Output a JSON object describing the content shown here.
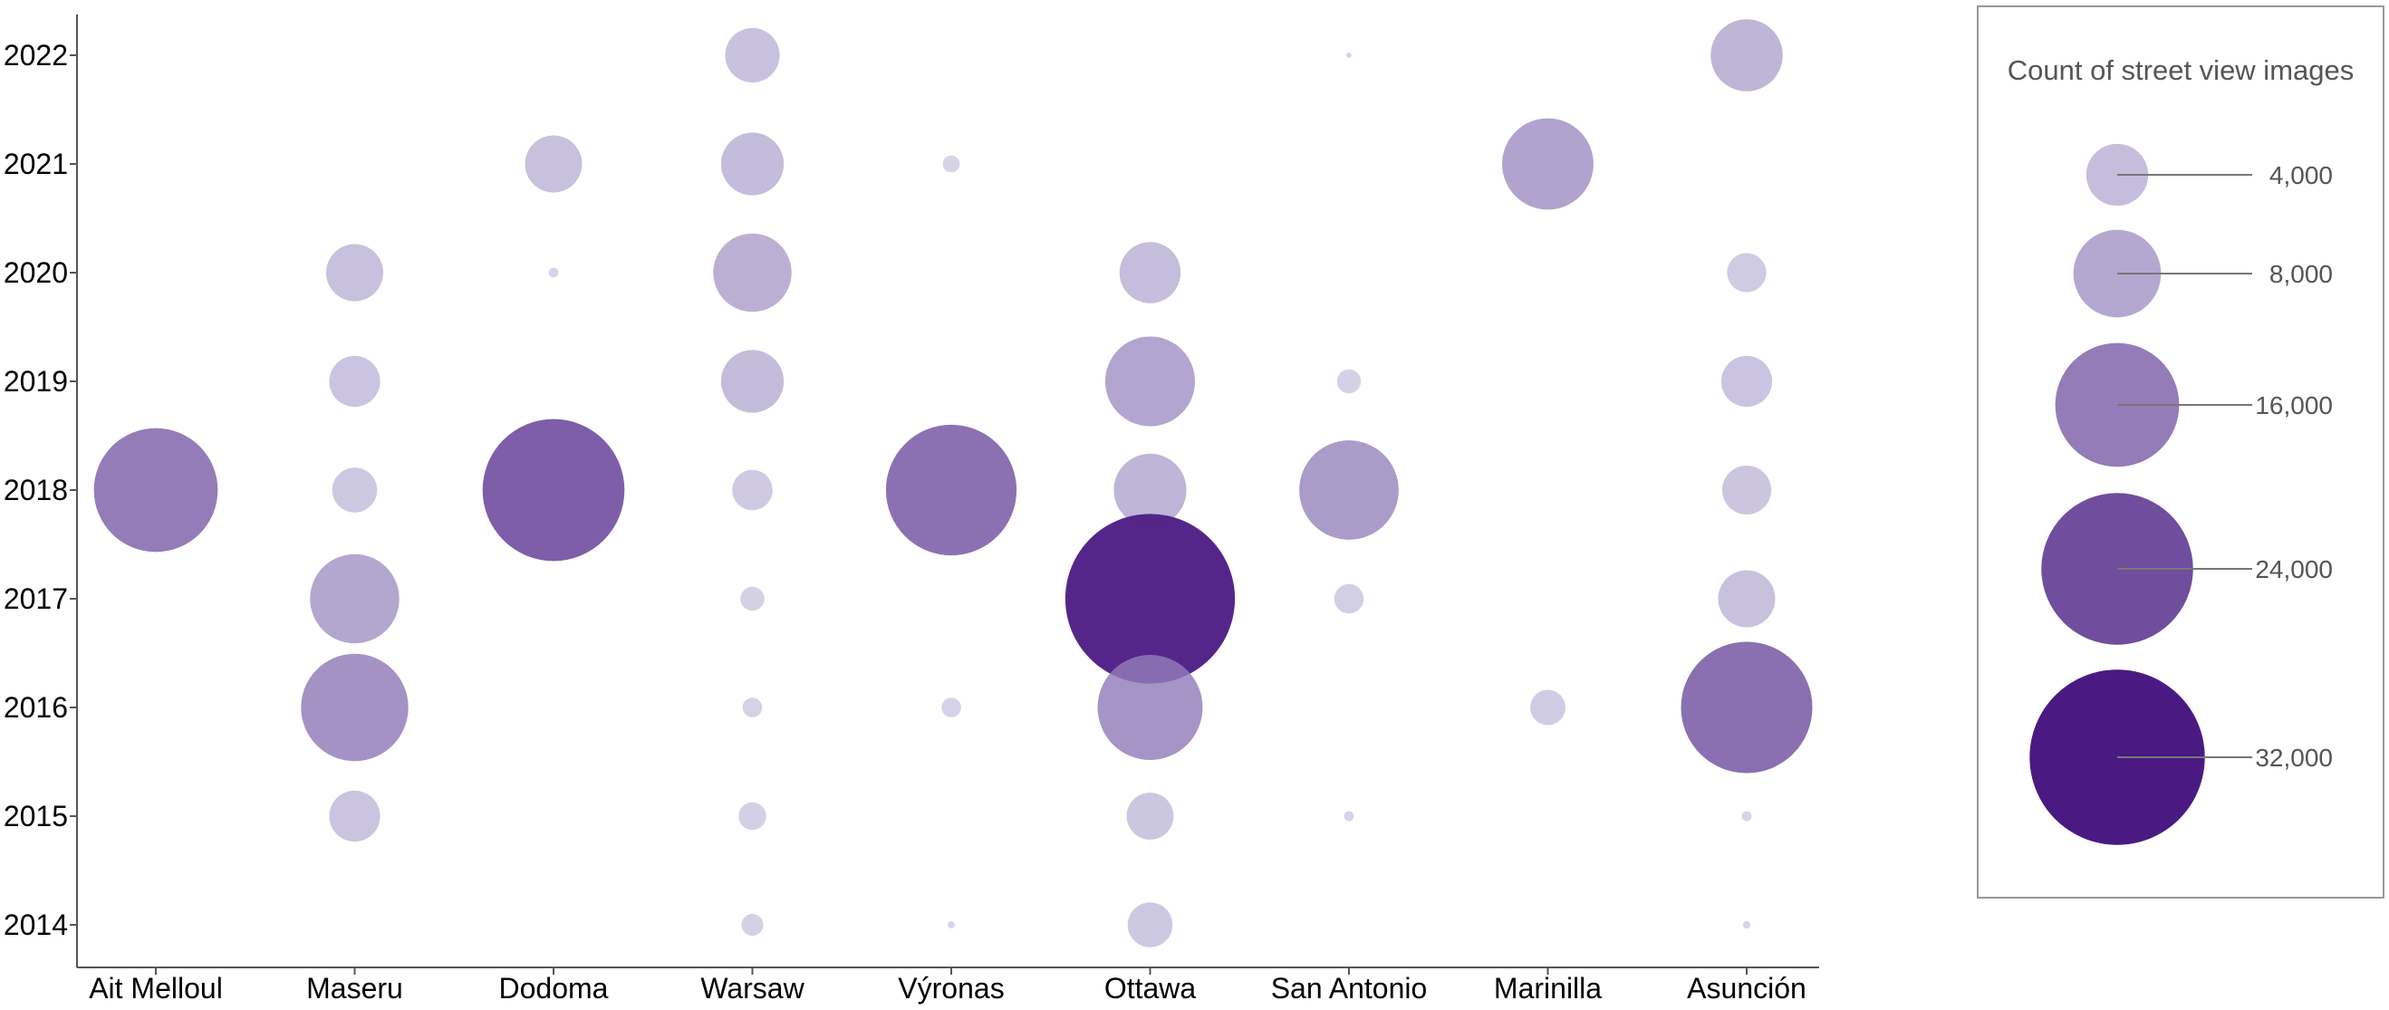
{
  "chart_data": {
    "type": "scatter",
    "title": "",
    "xlabel": "",
    "ylabel": "",
    "categories": [
      "Ait Melloul",
      "Maseru",
      "Dodoma",
      "Warsaw",
      "Výronas",
      "Ottawa",
      "San Antonio",
      "Marinilla",
      "Asunción"
    ],
    "years": [
      2014,
      2015,
      2016,
      2017,
      2018,
      2019,
      2020,
      2021,
      2022
    ],
    "size_legend": {
      "title": "Count of street view images",
      "entries": [
        {
          "value": 4000,
          "label": "4,000"
        },
        {
          "value": 8000,
          "label": "8,000"
        },
        {
          "value": 16000,
          "label": "16,000"
        },
        {
          "value": 24000,
          "label": "24,000"
        },
        {
          "value": 32000,
          "label": "32,000"
        }
      ],
      "placement": "right"
    },
    "colors": {
      "low": "#c7c5e0",
      "high": "#4a1a82",
      "axis": "#555555",
      "legend_border": "#999999"
    },
    "points": [
      {
        "city": "Ait Melloul",
        "year": 2018,
        "count": 16000
      },
      {
        "city": "Maseru",
        "year": 2020,
        "count": 3400
      },
      {
        "city": "Maseru",
        "year": 2019,
        "count": 2700
      },
      {
        "city": "Maseru",
        "year": 2018,
        "count": 2100
      },
      {
        "city": "Maseru",
        "year": 2017,
        "count": 8300
      },
      {
        "city": "Maseru",
        "year": 2016,
        "count": 12000
      },
      {
        "city": "Maseru",
        "year": 2015,
        "count": 2700
      },
      {
        "city": "Dodoma",
        "year": 2021,
        "count": 3400
      },
      {
        "city": "Dodoma",
        "year": 2020,
        "count": 100
      },
      {
        "city": "Dodoma",
        "year": 2018,
        "count": 21000
      },
      {
        "city": "Warsaw",
        "year": 2022,
        "count": 3100
      },
      {
        "city": "Warsaw",
        "year": 2021,
        "count": 4100
      },
      {
        "city": "Warsaw",
        "year": 2020,
        "count": 6400
      },
      {
        "city": "Warsaw",
        "year": 2019,
        "count": 4100
      },
      {
        "city": "Warsaw",
        "year": 2018,
        "count": 1700
      },
      {
        "city": "Warsaw",
        "year": 2017,
        "count": 600
      },
      {
        "city": "Warsaw",
        "year": 2016,
        "count": 400
      },
      {
        "city": "Warsaw",
        "year": 2015,
        "count": 800
      },
      {
        "city": "Warsaw",
        "year": 2014,
        "count": 500
      },
      {
        "city": "Výronas",
        "year": 2021,
        "count": 300
      },
      {
        "city": "Výronas",
        "year": 2018,
        "count": 17800
      },
      {
        "city": "Výronas",
        "year": 2016,
        "count": 400
      },
      {
        "city": "Výronas",
        "year": 2014,
        "count": 50
      },
      {
        "city": "Ottawa",
        "year": 2020,
        "count": 3900
      },
      {
        "city": "Ottawa",
        "year": 2019,
        "count": 8400
      },
      {
        "city": "Ottawa",
        "year": 2018,
        "count": 5500
      },
      {
        "city": "Ottawa",
        "year": 2017,
        "count": 30000
      },
      {
        "city": "Ottawa",
        "year": 2016,
        "count": 11500
      },
      {
        "city": "Ottawa",
        "year": 2015,
        "count": 2300
      },
      {
        "city": "Ottawa",
        "year": 2014,
        "count": 2100
      },
      {
        "city": "San Antonio",
        "year": 2022,
        "count": 30
      },
      {
        "city": "San Antonio",
        "year": 2019,
        "count": 600
      },
      {
        "city": "San Antonio",
        "year": 2018,
        "count": 10300
      },
      {
        "city": "San Antonio",
        "year": 2017,
        "count": 900
      },
      {
        "city": "San Antonio",
        "year": 2015,
        "count": 100
      },
      {
        "city": "Marinilla",
        "year": 2021,
        "count": 8700
      },
      {
        "city": "Marinilla",
        "year": 2016,
        "count": 1300
      },
      {
        "city": "Asunción",
        "year": 2022,
        "count": 5400
      },
      {
        "city": "Asunción",
        "year": 2020,
        "count": 1600
      },
      {
        "city": "Asunción",
        "year": 2019,
        "count": 2700
      },
      {
        "city": "Asunción",
        "year": 2018,
        "count": 2500
      },
      {
        "city": "Asunción",
        "year": 2017,
        "count": 3400
      },
      {
        "city": "Asunción",
        "year": 2016,
        "count": 18000
      },
      {
        "city": "Asunción",
        "year": 2015,
        "count": 100
      },
      {
        "city": "Asunción",
        "year": 2014,
        "count": 60
      }
    ]
  }
}
